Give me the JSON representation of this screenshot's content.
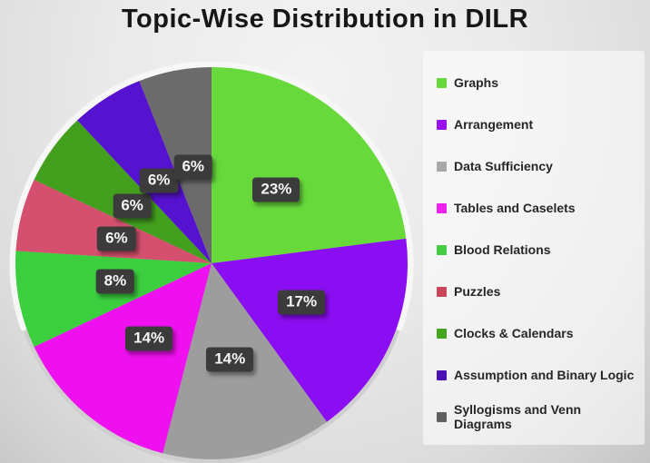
{
  "page": {
    "title": "Topic-Wise Distribution in DILR"
  },
  "chart_data": {
    "type": "pie",
    "title": "Topic-Wise Distribution in DILR",
    "direction": "clockwise",
    "start_angle_deg": 0,
    "legend_position": "right",
    "slices": [
      {
        "label": "Graphs",
        "value": 23,
        "display": "23%",
        "color": "#67d93b"
      },
      {
        "label": "Arrangement",
        "value": 17,
        "display": "17%",
        "color": "#8b0df2"
      },
      {
        "label": "Data Sufficiency",
        "value": 14,
        "display": "14%",
        "color": "#9d9d9d"
      },
      {
        "label": "Tables and Caselets",
        "value": 14,
        "display": "14%",
        "color": "#ee10ee"
      },
      {
        "label": "Blood Relations",
        "value": 8,
        "display": "8%",
        "color": "#3bce3e"
      },
      {
        "label": "Puzzles",
        "value": 6,
        "display": "6%",
        "color": "#d5506e"
      },
      {
        "label": "Clocks & Calendars",
        "value": 6,
        "display": "6%",
        "color": "#42a01e"
      },
      {
        "label": "Assumption and Binary Logic",
        "value": 6,
        "display": "6%",
        "color": "#5512cf"
      },
      {
        "label": "Syllogisms and Venn Diagrams",
        "value": 6,
        "display": "6%",
        "color": "#6b6b6b"
      }
    ]
  },
  "legend": {
    "items": [
      {
        "label": "Graphs",
        "color": "#67d93b"
      },
      {
        "label": "Arrangement",
        "color": "#9b12ee"
      },
      {
        "label": "Data Sufficiency",
        "color": "#a8a8a8"
      },
      {
        "label": "Tables and Caselets",
        "color": "#ee22ee"
      },
      {
        "label": "Blood Relations",
        "color": "#44cc44"
      },
      {
        "label": "Puzzles",
        "color": "#cc4458"
      },
      {
        "label": "Clocks & Calendars",
        "color": "#44a51e"
      },
      {
        "label": "Assumption and Binary Logic",
        "color": "#4a10b4"
      },
      {
        "label": "Syllogisms and Venn\nDiagrams",
        "color": "#5f5f5f"
      }
    ]
  }
}
